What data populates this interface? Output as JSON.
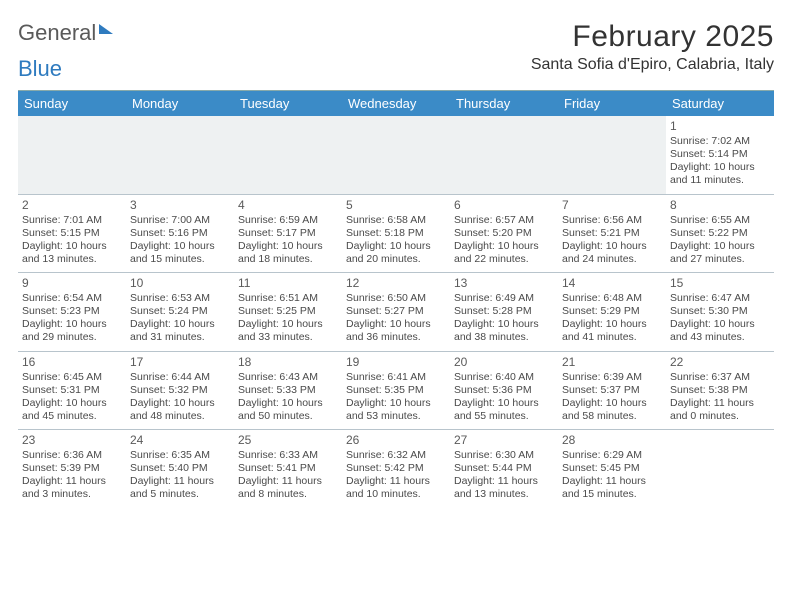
{
  "logo": {
    "word1": "General",
    "word2": "Blue"
  },
  "title": "February 2025",
  "location": "Santa Sofia d'Epiro, Calabria, Italy",
  "colors": {
    "header_bg": "#3b8bc7",
    "header_text": "#ffffff",
    "rule": "#b8c4cc",
    "logo_gray": "#5a5a5a",
    "logo_blue": "#2f7bbf"
  },
  "dayHeaders": [
    "Sunday",
    "Monday",
    "Tuesday",
    "Wednesday",
    "Thursday",
    "Friday",
    "Saturday"
  ],
  "weeks": [
    [
      null,
      null,
      null,
      null,
      null,
      null,
      {
        "n": "1",
        "sr": "Sunrise: 7:02 AM",
        "ss": "Sunset: 5:14 PM",
        "dl1": "Daylight: 10 hours",
        "dl2": "and 11 minutes."
      }
    ],
    [
      {
        "n": "2",
        "sr": "Sunrise: 7:01 AM",
        "ss": "Sunset: 5:15 PM",
        "dl1": "Daylight: 10 hours",
        "dl2": "and 13 minutes."
      },
      {
        "n": "3",
        "sr": "Sunrise: 7:00 AM",
        "ss": "Sunset: 5:16 PM",
        "dl1": "Daylight: 10 hours",
        "dl2": "and 15 minutes."
      },
      {
        "n": "4",
        "sr": "Sunrise: 6:59 AM",
        "ss": "Sunset: 5:17 PM",
        "dl1": "Daylight: 10 hours",
        "dl2": "and 18 minutes."
      },
      {
        "n": "5",
        "sr": "Sunrise: 6:58 AM",
        "ss": "Sunset: 5:18 PM",
        "dl1": "Daylight: 10 hours",
        "dl2": "and 20 minutes."
      },
      {
        "n": "6",
        "sr": "Sunrise: 6:57 AM",
        "ss": "Sunset: 5:20 PM",
        "dl1": "Daylight: 10 hours",
        "dl2": "and 22 minutes."
      },
      {
        "n": "7",
        "sr": "Sunrise: 6:56 AM",
        "ss": "Sunset: 5:21 PM",
        "dl1": "Daylight: 10 hours",
        "dl2": "and 24 minutes."
      },
      {
        "n": "8",
        "sr": "Sunrise: 6:55 AM",
        "ss": "Sunset: 5:22 PM",
        "dl1": "Daylight: 10 hours",
        "dl2": "and 27 minutes."
      }
    ],
    [
      {
        "n": "9",
        "sr": "Sunrise: 6:54 AM",
        "ss": "Sunset: 5:23 PM",
        "dl1": "Daylight: 10 hours",
        "dl2": "and 29 minutes."
      },
      {
        "n": "10",
        "sr": "Sunrise: 6:53 AM",
        "ss": "Sunset: 5:24 PM",
        "dl1": "Daylight: 10 hours",
        "dl2": "and 31 minutes."
      },
      {
        "n": "11",
        "sr": "Sunrise: 6:51 AM",
        "ss": "Sunset: 5:25 PM",
        "dl1": "Daylight: 10 hours",
        "dl2": "and 33 minutes."
      },
      {
        "n": "12",
        "sr": "Sunrise: 6:50 AM",
        "ss": "Sunset: 5:27 PM",
        "dl1": "Daylight: 10 hours",
        "dl2": "and 36 minutes."
      },
      {
        "n": "13",
        "sr": "Sunrise: 6:49 AM",
        "ss": "Sunset: 5:28 PM",
        "dl1": "Daylight: 10 hours",
        "dl2": "and 38 minutes."
      },
      {
        "n": "14",
        "sr": "Sunrise: 6:48 AM",
        "ss": "Sunset: 5:29 PM",
        "dl1": "Daylight: 10 hours",
        "dl2": "and 41 minutes."
      },
      {
        "n": "15",
        "sr": "Sunrise: 6:47 AM",
        "ss": "Sunset: 5:30 PM",
        "dl1": "Daylight: 10 hours",
        "dl2": "and 43 minutes."
      }
    ],
    [
      {
        "n": "16",
        "sr": "Sunrise: 6:45 AM",
        "ss": "Sunset: 5:31 PM",
        "dl1": "Daylight: 10 hours",
        "dl2": "and 45 minutes."
      },
      {
        "n": "17",
        "sr": "Sunrise: 6:44 AM",
        "ss": "Sunset: 5:32 PM",
        "dl1": "Daylight: 10 hours",
        "dl2": "and 48 minutes."
      },
      {
        "n": "18",
        "sr": "Sunrise: 6:43 AM",
        "ss": "Sunset: 5:33 PM",
        "dl1": "Daylight: 10 hours",
        "dl2": "and 50 minutes."
      },
      {
        "n": "19",
        "sr": "Sunrise: 6:41 AM",
        "ss": "Sunset: 5:35 PM",
        "dl1": "Daylight: 10 hours",
        "dl2": "and 53 minutes."
      },
      {
        "n": "20",
        "sr": "Sunrise: 6:40 AM",
        "ss": "Sunset: 5:36 PM",
        "dl1": "Daylight: 10 hours",
        "dl2": "and 55 minutes."
      },
      {
        "n": "21",
        "sr": "Sunrise: 6:39 AM",
        "ss": "Sunset: 5:37 PM",
        "dl1": "Daylight: 10 hours",
        "dl2": "and 58 minutes."
      },
      {
        "n": "22",
        "sr": "Sunrise: 6:37 AM",
        "ss": "Sunset: 5:38 PM",
        "dl1": "Daylight: 11 hours",
        "dl2": "and 0 minutes."
      }
    ],
    [
      {
        "n": "23",
        "sr": "Sunrise: 6:36 AM",
        "ss": "Sunset: 5:39 PM",
        "dl1": "Daylight: 11 hours",
        "dl2": "and 3 minutes."
      },
      {
        "n": "24",
        "sr": "Sunrise: 6:35 AM",
        "ss": "Sunset: 5:40 PM",
        "dl1": "Daylight: 11 hours",
        "dl2": "and 5 minutes."
      },
      {
        "n": "25",
        "sr": "Sunrise: 6:33 AM",
        "ss": "Sunset: 5:41 PM",
        "dl1": "Daylight: 11 hours",
        "dl2": "and 8 minutes."
      },
      {
        "n": "26",
        "sr": "Sunrise: 6:32 AM",
        "ss": "Sunset: 5:42 PM",
        "dl1": "Daylight: 11 hours",
        "dl2": "and 10 minutes."
      },
      {
        "n": "27",
        "sr": "Sunrise: 6:30 AM",
        "ss": "Sunset: 5:44 PM",
        "dl1": "Daylight: 11 hours",
        "dl2": "and 13 minutes."
      },
      {
        "n": "28",
        "sr": "Sunrise: 6:29 AM",
        "ss": "Sunset: 5:45 PM",
        "dl1": "Daylight: 11 hours",
        "dl2": "and 15 minutes."
      },
      null
    ]
  ]
}
